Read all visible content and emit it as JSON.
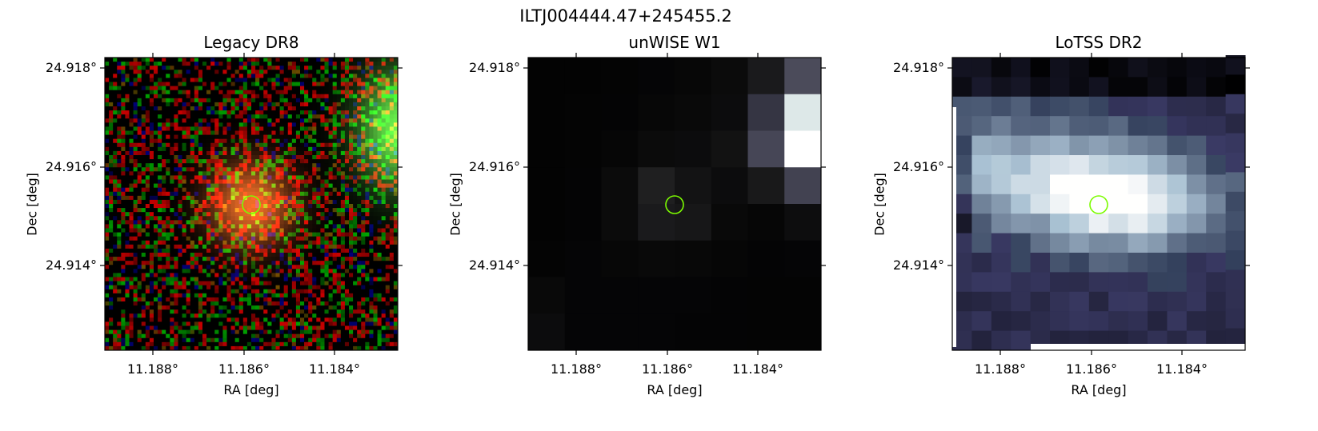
{
  "figure": {
    "title": "ILTJ004444.47+245455.2",
    "x_tick_labels": [
      "11.188°",
      "11.186°",
      "11.184°"
    ],
    "y_tick_labels": [
      "24.918°",
      "24.916°",
      "24.914°"
    ],
    "xlabel": "RA [deg]",
    "ylabel": "Dec [deg]",
    "marker_color": "#7cfc00",
    "panels": [
      {
        "id": "legacy",
        "title": "Legacy DR8",
        "image": "color optical cutout (g/r/z composite): orange-red galaxy centered at marker, green extended source at right edge, noisy background"
      },
      {
        "id": "unwise",
        "title": "unWISE W1",
        "image": "grayscale infrared cutout: faint gray blob near marker, bright white source at right edge"
      },
      {
        "id": "lotss",
        "title": "LoTSS DR2",
        "image": "bone colormap radio cutout: bright diffuse emission around marker extending to the left"
      }
    ]
  }
}
